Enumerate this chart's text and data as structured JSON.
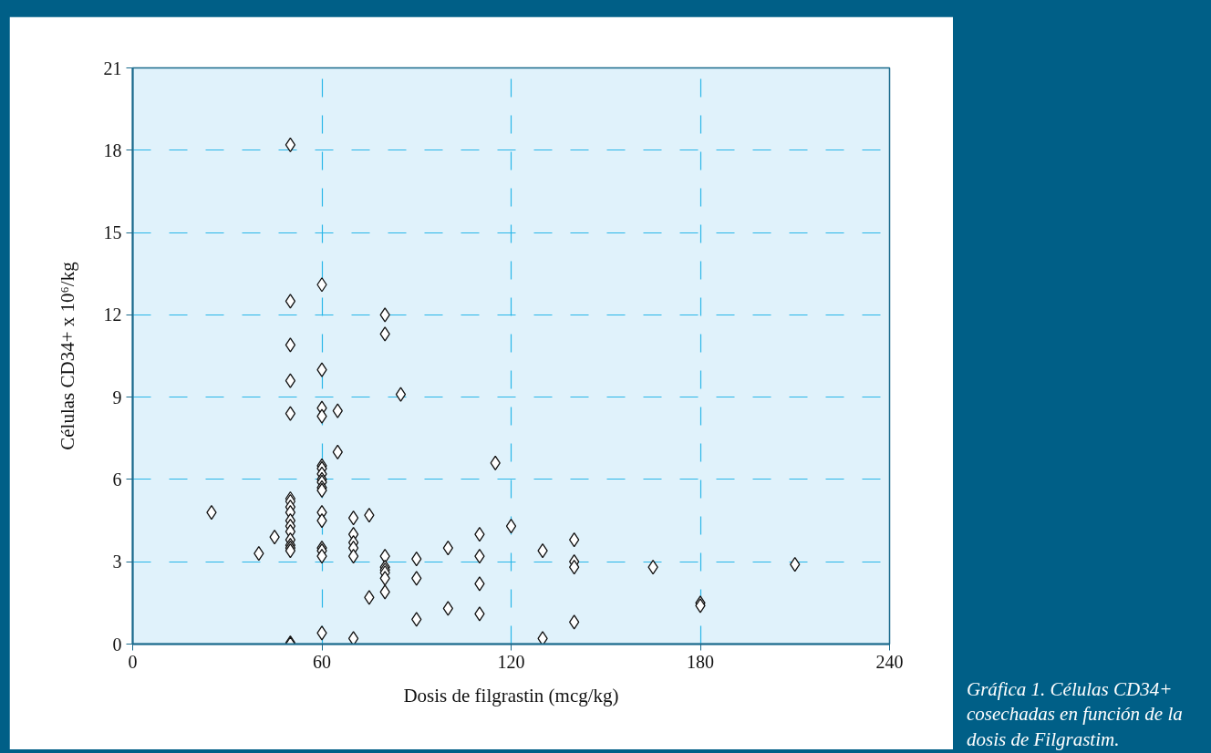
{
  "chart_data": {
    "type": "scatter",
    "xlabel": "Dosis de filgrastin (mcg/kg)",
    "ylabel": "Células CD34+ x 10⁶/kg",
    "annotations": [
      "Gráfica 1. Células CD34+ cosechadas en función de la dosis de Filgrastim."
    ],
    "xlim": [
      0,
      240
    ],
    "xticks": [
      0,
      60,
      120,
      180,
      240
    ],
    "ylim": [
      0,
      21
    ],
    "yticks": [
      0,
      3,
      6,
      9,
      12,
      15,
      18,
      21
    ],
    "grid": true,
    "marker": "diamond",
    "series": [
      {
        "color": "#ffffff",
        "x": [
          50,
          50,
          50,
          50,
          50,
          50,
          50,
          50,
          50,
          50,
          50,
          50,
          50,
          50,
          50,
          50,
          50,
          50,
          60,
          60,
          60,
          60,
          60,
          60,
          60,
          60,
          60,
          60,
          60,
          60,
          60,
          60,
          60,
          60,
          60,
          25,
          40,
          45,
          65,
          65,
          70,
          70,
          70,
          70,
          70,
          70,
          75,
          75,
          80,
          80,
          80,
          80,
          80,
          80,
          80,
          80,
          85,
          90,
          90,
          90,
          100,
          100,
          110,
          110,
          110,
          110,
          115,
          120,
          130,
          130,
          140,
          140,
          140,
          140,
          165,
          180,
          180,
          210
        ],
        "values": [
          18.2,
          12.5,
          10.9,
          9.6,
          8.4,
          5.3,
          5.2,
          5.0,
          4.8,
          4.5,
          4.3,
          4.1,
          3.8,
          3.6,
          3.5,
          3.4,
          0.05,
          0,
          13.1,
          10.0,
          8.6,
          8.3,
          6.5,
          6.4,
          6.2,
          6.0,
          5.9,
          5.7,
          5.6,
          4.8,
          4.5,
          3.5,
          3.4,
          3.2,
          0.4,
          4.8,
          3.3,
          3.9,
          8.5,
          7.0,
          4.6,
          4.0,
          3.7,
          3.5,
          3.2,
          0.2,
          4.7,
          1.7,
          12.0,
          11.3,
          3.2,
          2.8,
          2.7,
          2.6,
          2.4,
          1.9,
          9.1,
          3.1,
          2.4,
          0.9,
          3.5,
          1.3,
          4.0,
          3.2,
          2.2,
          1.1,
          6.6,
          4.3,
          3.4,
          0.2,
          3.8,
          3.0,
          2.8,
          0.8,
          2.8,
          1.5,
          1.4,
          2.9
        ]
      }
    ]
  }
}
